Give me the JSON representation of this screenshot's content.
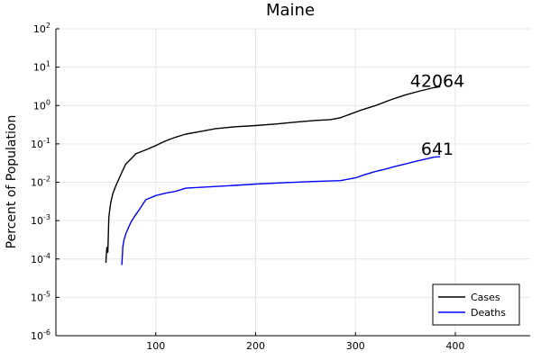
{
  "chart_data": {
    "type": "line",
    "title": "Maine",
    "xlabel": "",
    "ylabel": "Percent of Population",
    "xlim": [
      0,
      475
    ],
    "x_ticks": [
      100,
      200,
      300,
      400
    ],
    "ylim": [
      1e-06,
      100
    ],
    "y_scale": "log",
    "y_ticks": [
      {
        "base": "10",
        "exp": "-6",
        "value": 1e-06
      },
      {
        "base": "10",
        "exp": "-5",
        "value": 1e-05
      },
      {
        "base": "10",
        "exp": "-4",
        "value": 0.0001
      },
      {
        "base": "10",
        "exp": "-3",
        "value": 0.001
      },
      {
        "base": "10",
        "exp": "-2",
        "value": 0.01
      },
      {
        "base": "10",
        "exp": "-1",
        "value": 0.1
      },
      {
        "base": "10",
        "exp": "0",
        "value": 1
      },
      {
        "base": "10",
        "exp": "1",
        "value": 10
      },
      {
        "base": "10",
        "exp": "2",
        "value": 100
      }
    ],
    "grid": true,
    "legend_position": "bottom-right",
    "series": [
      {
        "name": "Cases",
        "color": "#000000",
        "x": [
          50,
          51,
          52,
          53,
          54,
          55,
          57,
          60,
          63,
          66,
          70,
          75,
          80,
          90,
          100,
          110,
          120,
          130,
          145,
          160,
          180,
          200,
          220,
          240,
          260,
          275,
          285,
          295,
          305,
          320,
          335,
          350,
          365,
          378,
          385
        ],
        "y": [
          8e-05,
          0.0002,
          0.00015,
          0.0012,
          0.002,
          0.003,
          0.005,
          0.008,
          0.012,
          0.018,
          0.03,
          0.04,
          0.055,
          0.07,
          0.09,
          0.12,
          0.15,
          0.18,
          0.21,
          0.25,
          0.28,
          0.3,
          0.33,
          0.37,
          0.41,
          0.43,
          0.48,
          0.6,
          0.75,
          1.0,
          1.4,
          1.9,
          2.4,
          2.9,
          3.1
        ]
      },
      {
        "name": "Deaths",
        "color": "#0000ff",
        "x": [
          66,
          67,
          68,
          70,
          72,
          75,
          78,
          82,
          86,
          90,
          100,
          110,
          120,
          130,
          150,
          170,
          200,
          230,
          260,
          285,
          300,
          310,
          320,
          330,
          340,
          350,
          360,
          370,
          378,
          385
        ],
        "y": [
          7e-05,
          0.0002,
          0.0003,
          0.00045,
          0.0006,
          0.0009,
          0.0012,
          0.0017,
          0.0024,
          0.0035,
          0.0045,
          0.0052,
          0.0058,
          0.007,
          0.0075,
          0.008,
          0.009,
          0.0098,
          0.0105,
          0.011,
          0.013,
          0.016,
          0.019,
          0.022,
          0.026,
          0.03,
          0.035,
          0.04,
          0.045,
          0.047
        ]
      }
    ],
    "annotations": [
      {
        "text": "42064",
        "x": 382,
        "y": 4.5
      },
      {
        "text": "641",
        "x": 382,
        "y": 0.075
      }
    ]
  }
}
